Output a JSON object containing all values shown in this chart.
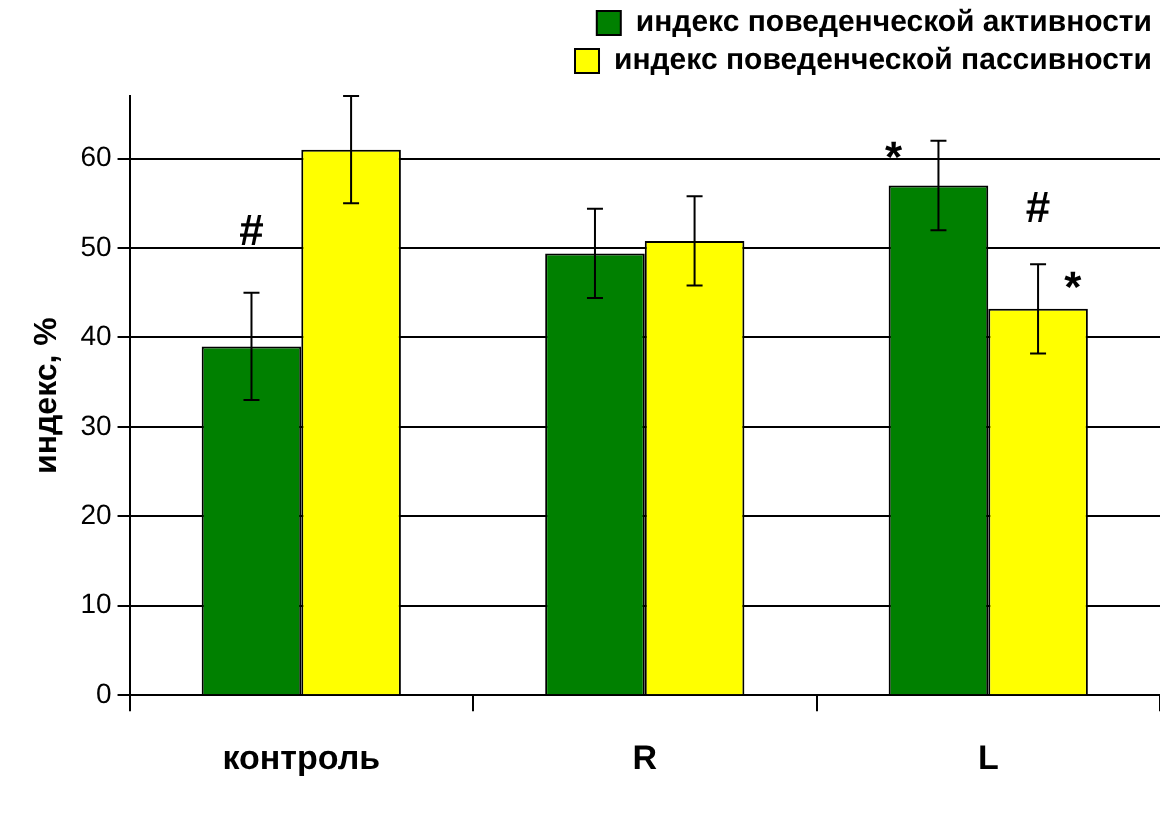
{
  "chart_data": {
    "type": "bar",
    "ylabel": "индекс, %",
    "categories": [
      "контроль",
      "R",
      "L"
    ],
    "series": [
      {
        "name": "индекс поведенческой активности",
        "color": "#008000",
        "values": [
          39,
          49.4,
          57
        ],
        "errors": [
          6,
          5,
          5
        ]
      },
      {
        "name": "индекс поведенческой пассивности",
        "color": "#ffff00",
        "values": [
          61,
          50.8,
          43.2
        ],
        "errors": [
          6,
          5,
          5
        ]
      }
    ],
    "ylim": [
      0,
      67
    ],
    "yticks": [
      0,
      10,
      20,
      30,
      40,
      50,
      60
    ],
    "grid": "y",
    "legend": "top right",
    "annotations": [
      {
        "text": "#",
        "x": "контроль",
        "y": 45
      },
      {
        "text": "*",
        "x": "L",
        "y": 57
      },
      {
        "text": "#",
        "x": "L",
        "y": 48
      },
      {
        "text": "*",
        "x": "L",
        "y": 48
      }
    ]
  }
}
